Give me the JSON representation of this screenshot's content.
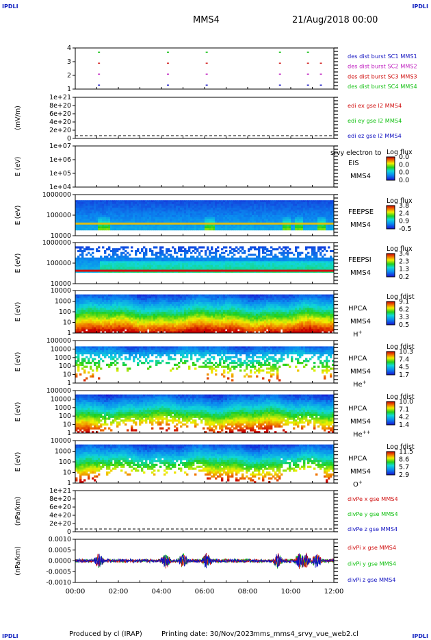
{
  "header": {
    "corner_left_top": "IPDLI",
    "corner_right_top": "IPDLI",
    "corner_left_bottom": "IPDLI",
    "corner_right_bottom": "IPDLI",
    "mission": "MMS4",
    "datetime": "21/Aug/2018 00:00"
  },
  "footer": {
    "produced_by": "Produced by cl (IRAP)",
    "printing_date": "Printing date: 30/Nov/2023",
    "filename": "mms_mms4_srvy_vue_web2.cl"
  },
  "colors": {
    "blue": "#1010c0",
    "magenta": "#c020c0",
    "red": "#d01010",
    "green": "#10c010"
  },
  "chart_data": [
    {
      "type": "scatter",
      "id": "burst",
      "yticks": [
        "4",
        "3",
        "2",
        "1"
      ],
      "legend": [
        {
          "label": "des dist burst SC1 MMS1",
          "color": "#1010c0"
        },
        {
          "label": "des dist burst SC2 MMS2",
          "color": "#c020c0"
        },
        {
          "label": "des dist burst SC3 MMS3",
          "color": "#d01010"
        },
        {
          "label": "des dist burst SC4 MMS4",
          "color": "#10c010"
        }
      ],
      "burst_times_h": [
        1.1,
        4.3,
        6.1,
        9.5,
        10.8,
        11.4
      ]
    },
    {
      "type": "line",
      "id": "edi",
      "ylabel": "(mV/m)",
      "yticks": [
        "1e+21",
        "8e+20",
        "6e+20",
        "4e+20",
        "2e+20",
        "0"
      ],
      "legend": [
        {
          "label": "edi ex gse l2 MMS4",
          "color": "#d01010"
        },
        {
          "label": "edi ey gse l2 MMS4",
          "color": "#10c010"
        },
        {
          "label": "edi ez gse l2 MMS4",
          "color": "#1010c0"
        }
      ]
    },
    {
      "type": "heatmap",
      "id": "eis",
      "ylabel": "E (eV)",
      "yticks": [
        "1e+07",
        "1e+06",
        "1e+05",
        "1e+04"
      ],
      "instrument": "EIS",
      "instrument_extra": "srvy electron to",
      "sc": "MMS4",
      "species": "",
      "cbar_title": "Log flux",
      "cbar_ticks": [
        "0.0",
        "0.0",
        "0.0",
        "0.0"
      ],
      "empty": true
    },
    {
      "type": "heatmap",
      "id": "feepse",
      "ylabel": "E (eV)",
      "yticks": [
        "1000000",
        "100000",
        "10000"
      ],
      "instrument": "FEEPSE",
      "sc": "MMS4",
      "species": "",
      "cbar_title": "Log flux",
      "cbar_ticks": [
        "3.8",
        "2.4",
        "0.9",
        "-0.5"
      ],
      "low_band_h": [
        [
          1.0,
          1.6
        ],
        [
          6.0,
          6.5
        ],
        [
          9.6,
          10.0
        ],
        [
          10.2,
          10.6
        ],
        [
          11.2,
          11.6
        ]
      ]
    },
    {
      "type": "heatmap",
      "id": "feepsi",
      "ylabel": "E (eV)",
      "yticks": [
        "1000000",
        "100000",
        "10000"
      ],
      "instrument": "FEEPSI",
      "sc": "MMS4",
      "species": "",
      "cbar_title": "Log flux",
      "cbar_ticks": [
        "3.4",
        "2.3",
        "1.3",
        "0.2"
      ]
    },
    {
      "type": "heatmap",
      "id": "hpca_h",
      "ylabel": "E (eV)",
      "yticks": [
        "10000",
        "1000",
        "100",
        "10",
        "1"
      ],
      "instrument": "HPCA",
      "sc": "MMS4",
      "species": "H+",
      "cbar_title": "Log fdist",
      "cbar_ticks": [
        "9.1",
        "6.2",
        "3.3",
        "0.5"
      ]
    },
    {
      "type": "heatmap",
      "id": "hpca_he",
      "ylabel": "E (eV)",
      "yticks": [
        "100000",
        "10000",
        "1000",
        "100",
        "10",
        "1"
      ],
      "instrument": "HPCA",
      "sc": "MMS4",
      "species": "He+",
      "cbar_title": "Log fdist",
      "cbar_ticks": [
        "10.3",
        "7.4",
        "4.5",
        "1.7"
      ]
    },
    {
      "type": "heatmap",
      "id": "hpca_hepp",
      "ylabel": "E (eV)",
      "yticks": [
        "100000",
        "10000",
        "1000",
        "100",
        "10",
        "1"
      ],
      "instrument": "HPCA",
      "sc": "MMS4",
      "species": "He++",
      "cbar_title": "Log fdist",
      "cbar_ticks": [
        "10.0",
        "7.1",
        "4.2",
        "1.4"
      ]
    },
    {
      "type": "heatmap",
      "id": "hpca_o",
      "ylabel": "E (eV)",
      "yticks": [
        "10000",
        "1000",
        "100",
        "10",
        "1"
      ],
      "instrument": "HPCA",
      "sc": "MMS4",
      "species": "O+",
      "cbar_title": "Log fdist",
      "cbar_ticks": [
        "11.5",
        "8.6",
        "5.7",
        "2.9"
      ]
    },
    {
      "type": "line",
      "id": "divpe",
      "ylabel": "(nPa/km)",
      "yticks": [
        "1e+21",
        "8e+20",
        "6e+20",
        "4e+20",
        "2e+20",
        "0"
      ],
      "legend": [
        {
          "label": "divPe x gse MMS4",
          "color": "#d01010"
        },
        {
          "label": "divPe y gse MMS4",
          "color": "#10c010"
        },
        {
          "label": "divPe z gse MMS4",
          "color": "#1010c0"
        }
      ]
    },
    {
      "type": "line",
      "id": "divpi",
      "ylabel": "(nPa/km)",
      "yticks": [
        "0.0010",
        "0.0005",
        "0.0000",
        "-0.0005",
        "-0.0010"
      ],
      "legend": [
        {
          "label": "divPi x gse MMS4",
          "color": "#d01010"
        },
        {
          "label": "divPi y gse MMS4",
          "color": "#10c010"
        },
        {
          "label": "divPi z gse MMS4",
          "color": "#1010c0"
        }
      ],
      "spikes_h": [
        1.1,
        4.2,
        5.0,
        6.1,
        9.4,
        10.4,
        10.7,
        11.2
      ]
    }
  ],
  "time_axis": {
    "ticks": [
      "00:00",
      "02:00",
      "04:00",
      "06:00",
      "08:00",
      "10:00",
      "12:00"
    ],
    "range_h": [
      0,
      12
    ]
  }
}
